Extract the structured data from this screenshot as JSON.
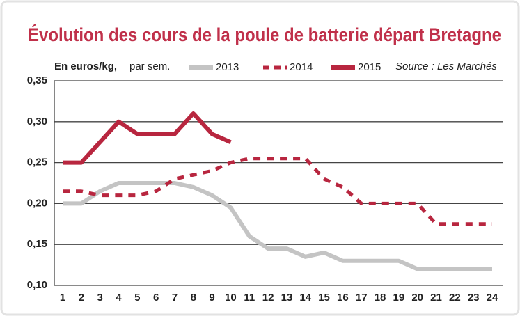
{
  "chart_data": {
    "type": "line",
    "title": "Évolution des cours de la poule de batterie départ Bretagne",
    "y_label": "En euros/kg,",
    "y_label_note": "par sem.",
    "source": "Source : Les Marchés",
    "categories": [
      "1",
      "2",
      "3",
      "4",
      "5",
      "6",
      "7",
      "8",
      "9",
      "10",
      "11",
      "12",
      "13",
      "14",
      "15",
      "16",
      "17",
      "18",
      "19",
      "20",
      "21",
      "22",
      "23",
      "24"
    ],
    "series": [
      {
        "name": "2013",
        "color": "#c4c4c4",
        "dashed": false,
        "values": [
          0.2,
          0.2,
          0.215,
          0.225,
          0.225,
          0.225,
          0.225,
          0.22,
          0.21,
          0.195,
          0.16,
          0.145,
          0.145,
          0.135,
          0.14,
          0.13,
          0.13,
          0.13,
          0.13,
          0.12,
          0.12,
          0.12,
          0.12,
          0.12
        ]
      },
      {
        "name": "2014",
        "color": "#b8263f",
        "dashed": true,
        "values": [
          0.215,
          0.215,
          0.21,
          0.21,
          0.21,
          0.215,
          0.23,
          0.235,
          0.24,
          0.25,
          0.255,
          0.255,
          0.255,
          0.255,
          0.23,
          0.22,
          0.2,
          0.2,
          0.2,
          0.2,
          0.175,
          0.175,
          0.175,
          0.175
        ]
      },
      {
        "name": "2015",
        "color": "#b8263f",
        "dashed": false,
        "values": [
          0.25,
          0.25,
          0.275,
          0.3,
          0.285,
          0.285,
          0.285,
          0.31,
          0.285,
          0.275,
          null,
          null,
          null,
          null,
          null,
          null,
          null,
          null,
          null,
          null,
          null,
          null,
          null,
          null
        ]
      }
    ],
    "ylim": [
      0.1,
      0.35
    ],
    "yticks": [
      {
        "value": 0.1,
        "label": "0,10"
      },
      {
        "value": 0.15,
        "label": "0,15"
      },
      {
        "value": 0.2,
        "label": "0,20"
      },
      {
        "value": 0.25,
        "label": "0,25"
      },
      {
        "value": 0.3,
        "label": "0,30"
      },
      {
        "value": 0.35,
        "label": "0,35"
      }
    ],
    "grid": true
  }
}
